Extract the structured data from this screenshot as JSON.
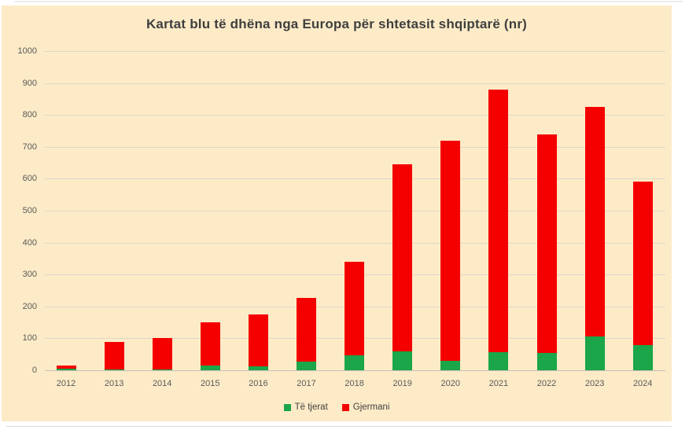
{
  "page": {
    "background_color": "#ffffff",
    "bottom_divider_color": "#d9d9d9"
  },
  "chart": {
    "background_color": "#fdebc7",
    "gridline_color": "#dcd8cb",
    "axis_line_color": "#c4c0b4",
    "title_color": "#3f3f3f",
    "tick_label_color": "#595959",
    "legend_text_color": "#404040"
  },
  "chart_data": {
    "type": "bar",
    "stacked": true,
    "title": "Kartat blu të dhëna nga Europa për shtetasit shqiptarë (nr)",
    "categories": [
      "2012",
      "2013",
      "2014",
      "2015",
      "2016",
      "2017",
      "2018",
      "2019",
      "2020",
      "2021",
      "2022",
      "2023",
      "2024"
    ],
    "series": [
      {
        "name": "Të tjerat",
        "color": "#1aa649",
        "values": [
          5,
          2,
          3,
          15,
          13,
          28,
          46,
          60,
          30,
          57,
          55,
          107,
          78
        ]
      },
      {
        "name": "Gjermani",
        "color": "#f50000",
        "values": [
          10,
          86,
          99,
          135,
          162,
          198,
          294,
          585,
          690,
          823,
          683,
          718,
          512
        ]
      }
    ],
    "totals": [
      15,
      88,
      102,
      150,
      175,
      226,
      340,
      645,
      720,
      880,
      738,
      825,
      590
    ],
    "xlabel": "",
    "ylabel": "",
    "ylim": [
      0,
      1000
    ],
    "ytick_step": 100,
    "ytick_labels": [
      "0",
      "100",
      "200",
      "300",
      "400",
      "500",
      "600",
      "700",
      "800",
      "900",
      "1000"
    ],
    "grid": true,
    "legend_position": "bottom"
  }
}
